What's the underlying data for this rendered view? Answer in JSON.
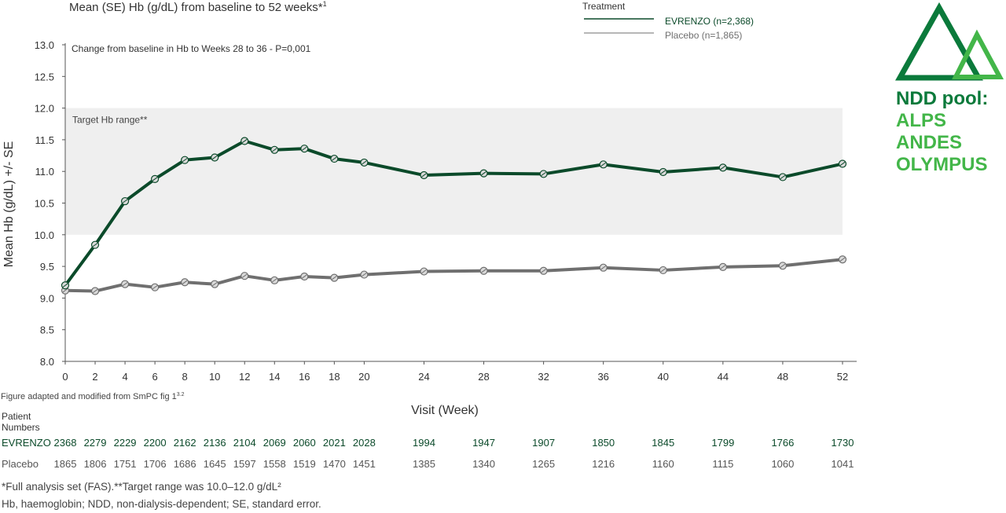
{
  "chart_data": {
    "type": "line",
    "title": "Mean (SE) Hb (g/dL) from baseline to 52 weeks*",
    "title_ref": "1",
    "xlabel": "Visit (Week)",
    "ylabel": "Mean Hb (g/dL) +/- SE",
    "x": [
      0,
      2,
      4,
      6,
      8,
      10,
      12,
      14,
      16,
      18,
      20,
      24,
      28,
      32,
      36,
      40,
      44,
      48,
      52
    ],
    "xlim": [
      0,
      52
    ],
    "ylim": [
      8.0,
      13.0
    ],
    "y_ticks": [
      "8.0",
      "8.5",
      "9.0",
      "9.5",
      "10.0",
      "10.5",
      "11.0",
      "11.5",
      "12.0",
      "12.5",
      "13.0"
    ],
    "series": [
      {
        "name": "EVRENZO (n=2,368)",
        "color": "#0b4a2a",
        "values": [
          9.2,
          9.84,
          10.53,
          10.88,
          11.18,
          11.22,
          11.48,
          11.34,
          11.36,
          11.2,
          11.14,
          10.94,
          10.97,
          10.96,
          11.11,
          10.99,
          11.06,
          10.91,
          11.12
        ]
      },
      {
        "name": "Placebo (n=1,865)",
        "color": "#6f6f6f",
        "values": [
          9.12,
          9.11,
          9.22,
          9.17,
          9.25,
          9.22,
          9.35,
          9.28,
          9.34,
          9.32,
          9.37,
          9.42,
          9.43,
          9.43,
          9.48,
          9.44,
          9.49,
          9.51,
          9.61
        ]
      }
    ],
    "band": {
      "from": 10.0,
      "to": 12.0,
      "label": "Target Hb range**"
    },
    "annotation": "Change from baseline in Hb to Weeks 28 to 36 - P=0,001",
    "legend_title": "Treatment",
    "legend_position": "top"
  },
  "source_note": "Figure adapted and modified from SmPC fig 1",
  "source_ref": "3.2",
  "patient_numbers": {
    "header_line1": "Patient",
    "header_line2": "Numbers",
    "rows": [
      {
        "label": "EVRENZO",
        "color": "#0b4a2a",
        "values": [
          "2368",
          "2279",
          "2229",
          "2200",
          "2162",
          "2136",
          "2104",
          "2069",
          "2060",
          "2021",
          "2028",
          "1994",
          "1947",
          "1907",
          "1850",
          "1845",
          "1799",
          "1766",
          "1730"
        ]
      },
      {
        "label": "Placebo",
        "color": "#555555",
        "values": [
          "1865",
          "1806",
          "1751",
          "1706",
          "1686",
          "1645",
          "1597",
          "1558",
          "1519",
          "1470",
          "1451",
          "1385",
          "1340",
          "1265",
          "1216",
          "1160",
          "1115",
          "1060",
          "1041"
        ]
      }
    ]
  },
  "footnotes": {
    "line1": "*Full analysis set (FAS).**Target range was 10.0–12.0 g/dL²",
    "line2": "Hb, haemoglobin; NDD, non-dialysis-dependent; SE, standard error."
  },
  "brand": {
    "line1": "NDD pool:",
    "line2": "ALPS",
    "line3": "ANDES",
    "line4": "OLYMPUS",
    "color_dark": "#0b7a3b",
    "color_light": "#43b649"
  }
}
